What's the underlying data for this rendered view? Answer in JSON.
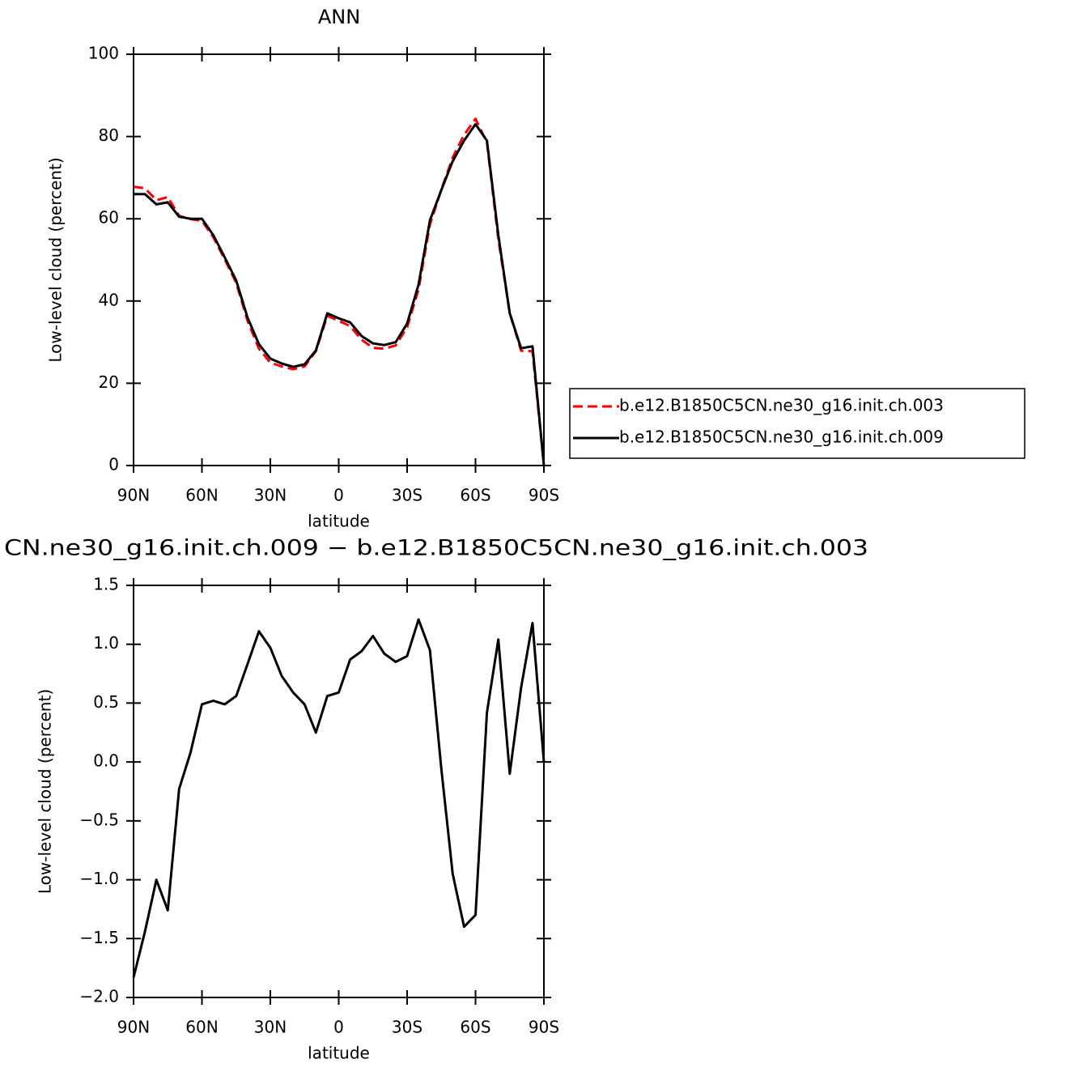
{
  "chart_data": [
    {
      "type": "line",
      "title": "ANN",
      "xlabel": "latitude",
      "ylabel": "Low-level cloud (percent)",
      "x": [
        90,
        85,
        80,
        75,
        70,
        65,
        60,
        55,
        50,
        45,
        40,
        35,
        30,
        25,
        20,
        15,
        10,
        5,
        0,
        -5,
        -10,
        -15,
        -20,
        -25,
        -30,
        -35,
        -40,
        -45,
        -50,
        -55,
        -60,
        -65,
        -70,
        -75,
        -80,
        -85,
        -90
      ],
      "series": [
        {
          "name": "b.e12.B1850C5CN.ne30_g16.init.ch.003",
          "color": "#ff0000",
          "dashed": true,
          "values": [
            67.8,
            67.4,
            64.5,
            65.3,
            60.7,
            59.9,
            59.5,
            55.5,
            50.1,
            44.4,
            35.2,
            28.4,
            25.0,
            24.1,
            23.4,
            24.1,
            27.8,
            36.4,
            35.2,
            33.9,
            30.6,
            28.6,
            28.4,
            29.2,
            33.6,
            42.8,
            58.6,
            67.1,
            74.9,
            80.4,
            84.3,
            78.6,
            55.0,
            37.1,
            27.9,
            27.8,
            0
          ]
        },
        {
          "name": "b.e12.B1850C5CN.ne30_g16.init.ch.009",
          "color": "#000000",
          "dashed": false,
          "values": [
            66,
            66,
            63.5,
            64,
            60.5,
            60,
            60,
            56,
            50.6,
            45,
            36,
            29.5,
            26,
            24.8,
            24,
            24.6,
            28,
            37,
            35.8,
            34.8,
            31.5,
            29.7,
            29.3,
            30,
            34.5,
            44,
            59.6,
            67,
            74,
            79,
            83,
            79,
            56,
            37,
            28.5,
            29,
            0
          ]
        }
      ],
      "xlim": [
        90,
        -90
      ],
      "xticks": [
        {
          "value": 90,
          "label": "90N"
        },
        {
          "value": 60,
          "label": "60N"
        },
        {
          "value": 30,
          "label": "30N"
        },
        0,
        {
          "value": -30,
          "label": "30S"
        },
        {
          "value": -60,
          "label": "60S"
        },
        {
          "value": -90,
          "label": "90S"
        }
      ],
      "ylim": [
        0,
        100
      ],
      "yticks": [
        0,
        20,
        40,
        60,
        80,
        100
      ],
      "legend": "right"
    },
    {
      "type": "line",
      "title": "CN.ne30_g16.init.ch.009 − b.e12.B1850C5CN.ne30_g16.init.ch.003",
      "xlabel": "latitude",
      "ylabel": "Low-level cloud (percent)",
      "x": [
        90,
        85,
        80,
        75,
        70,
        65,
        60,
        55,
        50,
        45,
        40,
        35,
        30,
        25,
        20,
        15,
        10,
        5,
        0,
        -5,
        -10,
        -15,
        -20,
        -25,
        -30,
        -35,
        -40,
        -45,
        -50,
        -55,
        -60,
        -65,
        -70,
        -75,
        -80,
        -85,
        -90
      ],
      "values": [
        -1.83,
        -1.44,
        -1.0,
        -1.26,
        -0.23,
        0.08,
        0.49,
        0.52,
        0.49,
        0.56,
        0.83,
        1.11,
        0.97,
        0.73,
        0.59,
        0.49,
        0.25,
        0.56,
        0.59,
        0.87,
        0.94,
        1.07,
        0.92,
        0.85,
        0.9,
        1.21,
        0.95,
        -0.06,
        -0.95,
        -1.4,
        -1.3,
        0.42,
        1.04,
        -0.1,
        0.63,
        1.18,
        0.0
      ],
      "color": "#000000",
      "xlim": [
        90,
        -90
      ],
      "xticks": [
        {
          "value": 90,
          "label": "90N"
        },
        {
          "value": 60,
          "label": "60N"
        },
        {
          "value": 30,
          "label": "30N"
        },
        0,
        {
          "value": -30,
          "label": "30S"
        },
        {
          "value": -60,
          "label": "60S"
        },
        {
          "value": -90,
          "label": "90S"
        }
      ],
      "ylim": [
        -2.0,
        1.5
      ],
      "yticks": [
        {
          "value": -2.0,
          "label": "−2.0"
        },
        {
          "value": -1.5,
          "label": "−1.5"
        },
        {
          "value": -1.0,
          "label": "−1.0"
        },
        {
          "value": -0.5,
          "label": "−0.5"
        },
        {
          "value": 0.0,
          "label": "0.0"
        },
        0.5,
        {
          "value": 1.0,
          "label": "1.0"
        },
        1.5
      ]
    }
  ]
}
